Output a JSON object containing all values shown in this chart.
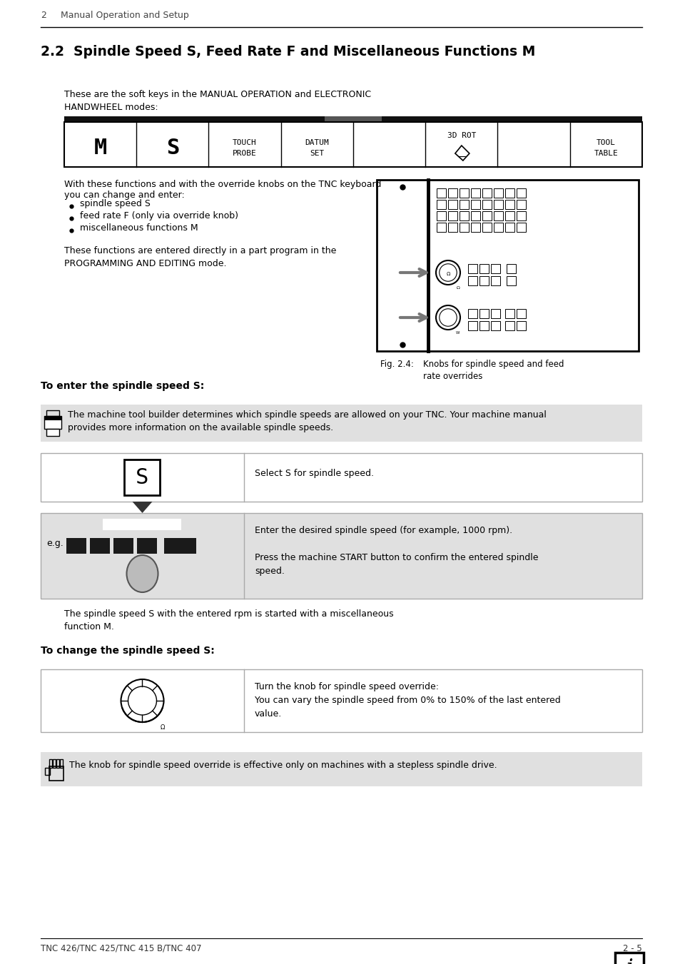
{
  "page_num": "2",
  "page_header": "Manual Operation and Setup",
  "section_title": "2.2  Spindle Speed S, Feed Rate F and Miscellaneous Functions M",
  "intro_text": "These are the soft keys in the MANUAL OPERATION and ELECTRONIC\nHANDWHEEL modes:",
  "softkey_labels": [
    "M",
    "S",
    "TOUCH\nPROBE",
    "DATUM\nSET",
    "",
    "3D ROT",
    "",
    "TOOL\nTABLE"
  ],
  "body_text1": "With these functions and with the override knobs on the TNC keyboard\nyou can change and enter:",
  "bullet_items": [
    "spindle speed S",
    "feed rate F (only via override knob)",
    "miscellaneous functions M"
  ],
  "body_text2": "These functions are entered directly in a part program in the\nPROGRAMMING AND EDITING mode.",
  "fig_caption_left": "Fig. 2.4:",
  "fig_caption_right": "Knobs for spindle speed and feed\nrate overrides",
  "section2_title": "To enter the spindle speed S:",
  "note_text": "The machine tool builder determines which spindle speeds are allowed on your TNC. Your machine manual\nprovides more information on the available spindle speeds.",
  "select_s_text": "Select S for spindle speed.",
  "enter_speed_text": "Enter the desired spindle speed (for example, 1000 rpm).\n\nPress the machine START button to confirm the entered spindle\nspeed.",
  "spindle_note_text": "The spindle speed S with the entered rpm is started with a miscellaneous\nfunction M.",
  "section3_title": "To change the spindle speed S:",
  "change_text": "Turn the knob for spindle speed override:\nYou can vary the spindle speed from 0% to 150% of the last entered\nvalue.",
  "override_note": "The knob for spindle speed override is effective only on machines with a stepless spindle drive.",
  "footer_left": "TNC 426/TNC 425/TNC 415 B/TNC 407",
  "footer_right": "2 - 5",
  "bg_color": "#ffffff",
  "gray_note_bg": "#e0e0e0",
  "gray_box_bg": "#d8d8d8",
  "border_color": "#000000",
  "light_border": "#aaaaaa"
}
